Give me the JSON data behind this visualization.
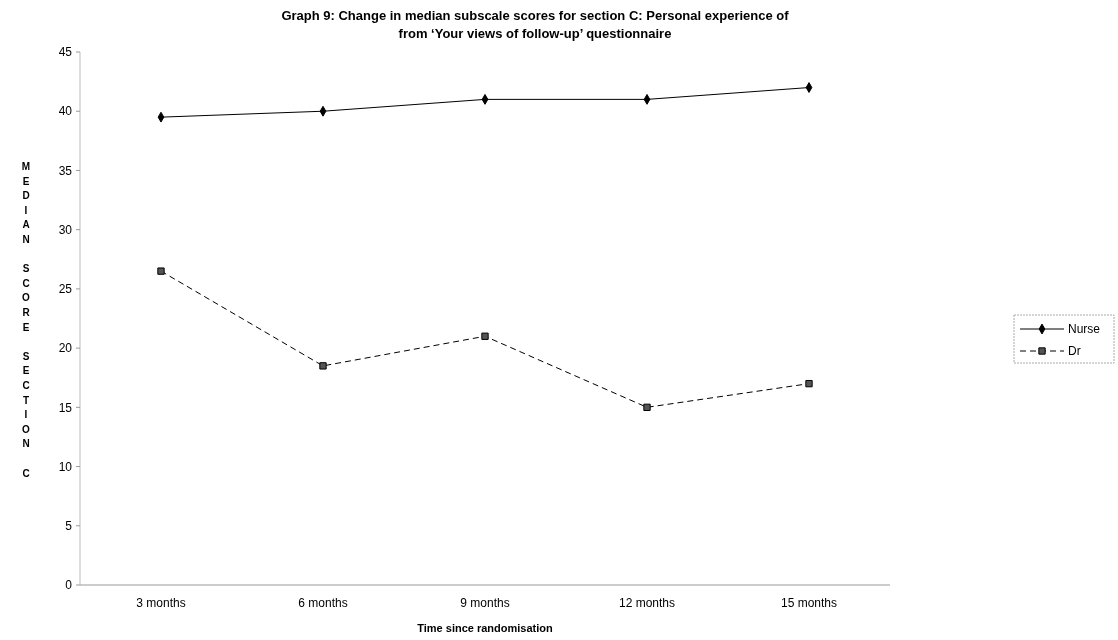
{
  "chart_data": {
    "type": "line",
    "title": "Graph 9: Change in median subscale scores for section C: Personal experience of\nfrom ‘Your views of follow-up’  questionnaire",
    "xlabel": "Time since randomisation",
    "ylabel": "MEDIAN SCORE SECTION C",
    "categories": [
      "3 months",
      "6 months",
      "9 months",
      "12 months",
      "15 months"
    ],
    "series": [
      {
        "name": "Nurse",
        "color": "#000000",
        "values": [
          39.5,
          40,
          41,
          41,
          42
        ],
        "marker": "diamond",
        "line_style": "solid"
      },
      {
        "name": "Dr",
        "color": "#000000",
        "values": [
          26.5,
          18.5,
          21,
          15,
          17
        ],
        "marker": "square",
        "line_style": "dashed"
      }
    ],
    "ylim": [
      0,
      45
    ],
    "yticks": [
      0,
      5,
      10,
      15,
      20,
      25,
      30,
      35,
      40,
      45
    ],
    "grid": false,
    "legend": "right"
  }
}
